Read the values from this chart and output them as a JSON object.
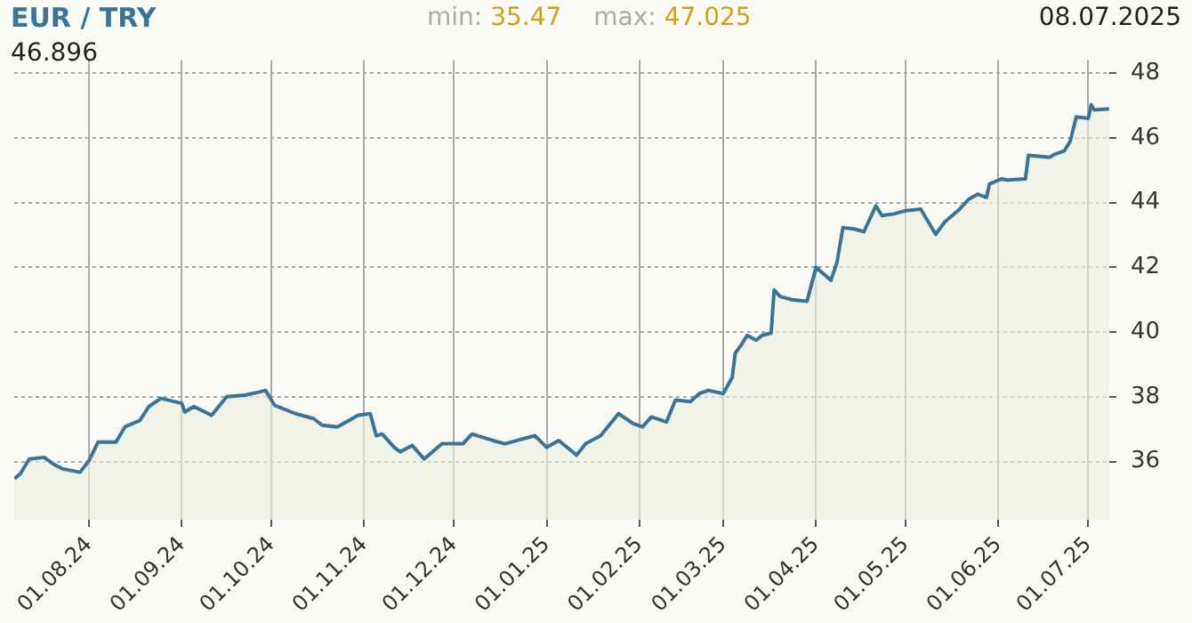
{
  "chart_data": {
    "type": "area",
    "title": "EUR / TRY",
    "annotations": [
      "min: 35.47",
      "max: 47.025",
      "08.07.2025",
      "46.896"
    ],
    "x": [
      "2024-07-07",
      "2024-07-09",
      "2024-07-12",
      "2024-07-17",
      "2024-07-20",
      "2024-07-23",
      "2024-07-29",
      "2024-08-01",
      "2024-08-04",
      "2024-08-10",
      "2024-08-13",
      "2024-08-18",
      "2024-08-21",
      "2024-08-25",
      "2024-09-01",
      "2024-09-02",
      "2024-09-05",
      "2024-09-11",
      "2024-09-16",
      "2024-09-22",
      "2024-09-27",
      "2024-09-29",
      "2024-10-02",
      "2024-10-09",
      "2024-10-15",
      "2024-10-18",
      "2024-10-23",
      "2024-10-30",
      "2024-11-03",
      "2024-11-05",
      "2024-11-07",
      "2024-11-11",
      "2024-11-13",
      "2024-11-17",
      "2024-11-21",
      "2024-11-27",
      "2024-12-04",
      "2024-12-07",
      "2024-12-14",
      "2024-12-18",
      "2024-12-28",
      "2025-01-01",
      "2025-01-05",
      "2025-01-11",
      "2025-01-14",
      "2025-01-19",
      "2025-01-25",
      "2025-01-30",
      "2025-02-02",
      "2025-02-05",
      "2025-02-10",
      "2025-02-13",
      "2025-02-18",
      "2025-02-21",
      "2025-02-24",
      "2025-03-01",
      "2025-03-04",
      "2025-03-05",
      "2025-03-07",
      "2025-03-09",
      "2025-03-12",
      "2025-03-14",
      "2025-03-17",
      "2025-03-18",
      "2025-03-20",
      "2025-03-24",
      "2025-03-29",
      "2025-04-01",
      "2025-04-06",
      "2025-04-08",
      "2025-04-10",
      "2025-04-14",
      "2025-04-17",
      "2025-04-21",
      "2025-04-23",
      "2025-04-27",
      "2025-05-01",
      "2025-05-06",
      "2025-05-11",
      "2025-05-14",
      "2025-05-19",
      "2025-05-22",
      "2025-05-25",
      "2025-05-28",
      "2025-05-29",
      "2025-06-02",
      "2025-06-04",
      "2025-06-10",
      "2025-06-11",
      "2025-06-18",
      "2025-06-20",
      "2025-06-23",
      "2025-06-25",
      "2025-06-27",
      "2025-07-01",
      "2025-07-02",
      "2025-07-03",
      "2025-07-08"
    ],
    "series": [
      {
        "color": "#3a7597",
        "values": [
          35.47,
          35.62,
          36.08,
          36.13,
          35.93,
          35.78,
          35.67,
          36.03,
          36.6,
          36.6,
          37.07,
          37.27,
          37.7,
          37.95,
          37.8,
          37.53,
          37.7,
          37.43,
          38.0,
          38.05,
          38.15,
          38.2,
          37.74,
          37.48,
          37.33,
          37.12,
          37.07,
          37.43,
          37.48,
          36.8,
          36.85,
          36.44,
          36.3,
          36.5,
          36.08,
          36.55,
          36.55,
          36.85,
          36.65,
          36.55,
          36.8,
          36.44,
          36.65,
          36.2,
          36.55,
          36.8,
          37.48,
          37.17,
          37.07,
          37.38,
          37.22,
          37.9,
          37.85,
          38.1,
          38.2,
          38.1,
          38.6,
          39.35,
          39.6,
          39.9,
          39.75,
          39.9,
          39.97,
          41.3,
          41.1,
          41.0,
          40.95,
          42.0,
          41.6,
          42.15,
          43.23,
          43.18,
          43.1,
          43.9,
          43.6,
          43.65,
          43.75,
          43.8,
          43.02,
          43.4,
          43.8,
          44.1,
          44.26,
          44.16,
          44.58,
          44.73,
          44.7,
          44.73,
          45.46,
          45.4,
          45.5,
          45.6,
          45.9,
          46.65,
          46.6,
          47.025,
          46.86,
          46.896
        ]
      }
    ],
    "xlim": [
      "2024-07-07",
      "2025-07-08"
    ],
    "xticks": [
      {
        "value": "2024-08-01",
        "label": "01.08.24"
      },
      {
        "value": "2024-09-01",
        "label": "01.09.24"
      },
      {
        "value": "2024-10-01",
        "label": "01.10.24"
      },
      {
        "value": "2024-11-01",
        "label": "01.11.24"
      },
      {
        "value": "2024-12-01",
        "label": "01.12.24"
      },
      {
        "value": "2025-01-01",
        "label": "01.01.25"
      },
      {
        "value": "2025-02-01",
        "label": "01.02.25"
      },
      {
        "value": "2025-03-01",
        "label": "01.03.25"
      },
      {
        "value": "2025-04-01",
        "label": "01.04.25"
      },
      {
        "value": "2025-05-01",
        "label": "01.05.25"
      },
      {
        "value": "2025-06-01",
        "label": "01.06.25"
      },
      {
        "value": "2025-07-01",
        "label": "01.07.25"
      }
    ],
    "ylim": [
      34.2,
      48.4
    ],
    "yticks": [
      36,
      38,
      40,
      42,
      44,
      46,
      48
    ],
    "grid": true,
    "legend": false
  }
}
